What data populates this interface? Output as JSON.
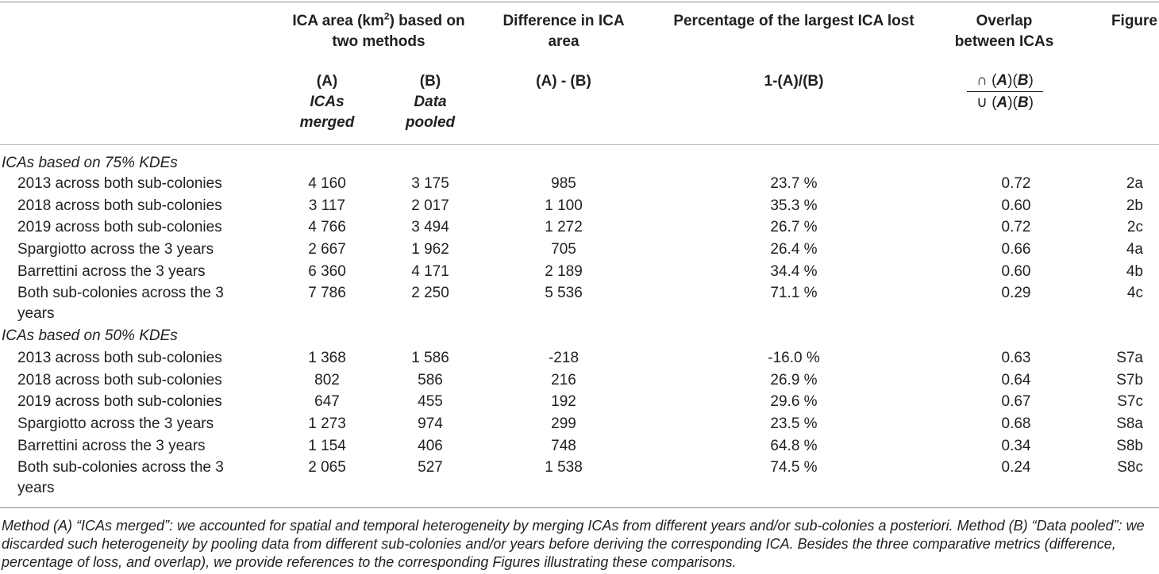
{
  "header": {
    "ica_area_pre": "ICA area (km",
    "ica_area_sup": "2",
    "ica_area_post": ") based on two methods",
    "difference": "Difference in ICA area",
    "percentage": "Percentage of the largest ICA lost",
    "overlap": "Overlap between ICAs",
    "figure": "Figure"
  },
  "subheader": {
    "a_code": "(A)",
    "a_label": "ICAs merged",
    "b_code": "(B)",
    "b_label": "Data pooled",
    "diff_formula": "(A) - (B)",
    "pct_formula": "1-(A)/(B)",
    "overlap_num_sym": "∩",
    "overlap_den_sym": "∪",
    "overlap_A": "A",
    "overlap_B": "B"
  },
  "sections": [
    {
      "title": "ICAs based on 75% KDEs",
      "rows": [
        {
          "label": "2013 across both sub-colonies",
          "a": "4 160",
          "b": "3 175",
          "diff": "985",
          "pct": "23.7 %",
          "overlap": "0.72",
          "fig": "2a"
        },
        {
          "label": "2018 across both sub-colonies",
          "a": "3 117",
          "b": "2 017",
          "diff": "1 100",
          "pct": "35.3 %",
          "overlap": "0.60",
          "fig": "2b"
        },
        {
          "label": "2019 across both sub-colonies",
          "a": "4 766",
          "b": "3 494",
          "diff": "1 272",
          "pct": "26.7 %",
          "overlap": "0.72",
          "fig": "2c"
        },
        {
          "label": "Spargiotto across the 3 years",
          "a": "2 667",
          "b": "1 962",
          "diff": "705",
          "pct": "26.4 %",
          "overlap": "0.66",
          "fig": "4a"
        },
        {
          "label": "Barrettini across the 3 years",
          "a": "6 360",
          "b": "4 171",
          "diff": "2 189",
          "pct": "34.4 %",
          "overlap": "0.60",
          "fig": "4b"
        },
        {
          "label": "Both sub-colonies across the 3 years",
          "a": "7 786",
          "b": "2 250",
          "diff": "5 536",
          "pct": "71.1 %",
          "overlap": "0.29",
          "fig": "4c"
        }
      ]
    },
    {
      "title": "ICAs based on 50% KDEs",
      "rows": [
        {
          "label": "2013 across both sub-colonies",
          "a": "1 368",
          "b": "1 586",
          "diff": "-218",
          "pct": "-16.0 %",
          "overlap": "0.63",
          "fig": "S7a"
        },
        {
          "label": "2018 across both sub-colonies",
          "a": "802",
          "b": "586",
          "diff": "216",
          "pct": "26.9 %",
          "overlap": "0.64",
          "fig": "S7b"
        },
        {
          "label": "2019 across both sub-colonies",
          "a": "647",
          "b": "455",
          "diff": "192",
          "pct": "29.6 %",
          "overlap": "0.67",
          "fig": "S7c"
        },
        {
          "label": "Spargiotto across the 3 years",
          "a": "1 273",
          "b": "974",
          "diff": "299",
          "pct": "23.5 %",
          "overlap": "0.68",
          "fig": "S8a"
        },
        {
          "label": "Barrettini across the 3 years",
          "a": "1 154",
          "b": "406",
          "diff": "748",
          "pct": "64.8 %",
          "overlap": "0.34",
          "fig": "S8b"
        },
        {
          "label": "Both sub-colonies across the 3 years",
          "a": "2 065",
          "b": "527",
          "diff": "1 538",
          "pct": "74.5 %",
          "overlap": "0.24",
          "fig": "S8c"
        }
      ]
    }
  ],
  "footnote": "Method (A) “ICAs merged”: we accounted for spatial and temporal heterogeneity by merging ICAs from different years and/or sub-colonies a posteriori. Method (B) “Data pooled”: we discarded such heterogeneity by pooling data from different sub-colonies and/or years before deriving the corresponding ICA. Besides the three comparative metrics (difference, percentage of loss, and overlap), we provide references to the corresponding Figures illustrating these comparisons."
}
